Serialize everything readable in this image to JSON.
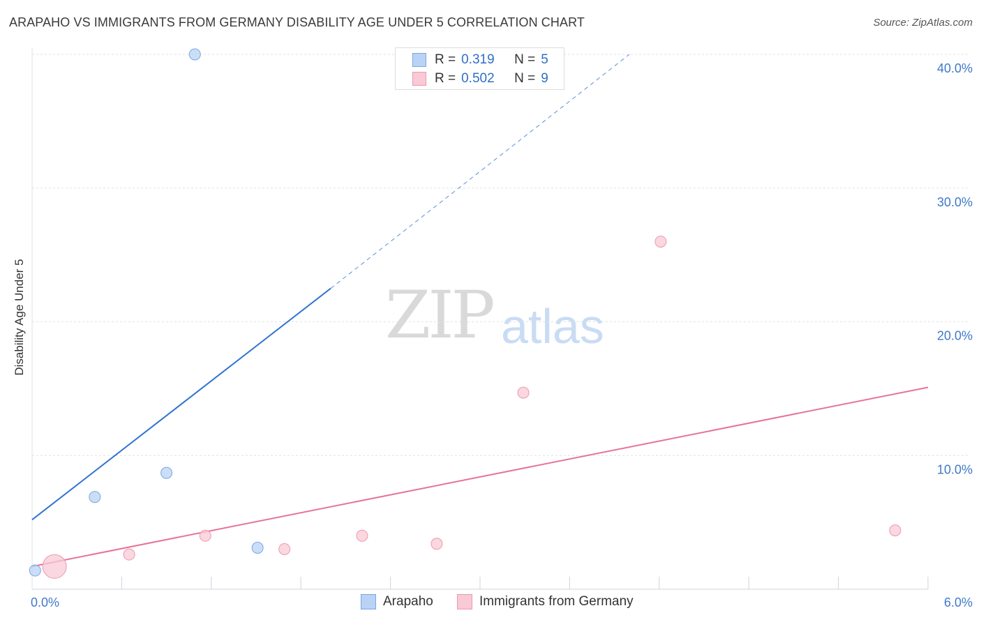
{
  "header": {
    "title": "ARAPAHO VS IMMIGRANTS FROM GERMANY DISABILITY AGE UNDER 5 CORRELATION CHART",
    "source": "Source: ZipAtlas.com"
  },
  "watermark": {
    "zip": "ZIP",
    "atlas": "atlas"
  },
  "legend": {
    "arapaho": {
      "r_label": "R =",
      "r_value": "0.319",
      "n_label": "N =",
      "n_value": "5"
    },
    "germany": {
      "r_label": "R =",
      "r_value": "0.502",
      "n_label": "N =",
      "n_value": "9"
    }
  },
  "bottom_legend": {
    "arapaho": "Arapaho",
    "germany": "Immigrants from Germany"
  },
  "colors": {
    "arapaho_fill": "#b9d3f6",
    "arapaho_stroke": "#7aa6e0",
    "arapaho_line": "#2f74cf",
    "germany_fill": "#f9c9d6",
    "germany_stroke": "#ec98b0",
    "germany_line": "#e5739a",
    "grid": "#dde1e6",
    "tick_text": "#3f79c9"
  },
  "chart_data": {
    "type": "scatter",
    "title": "ARAPAHO VS IMMIGRANTS FROM GERMANY DISABILITY AGE UNDER 5 CORRELATION CHART",
    "xlabel": "",
    "ylabel": "Disability Age Under 5",
    "xlim": [
      0,
      6
    ],
    "ylim": [
      0,
      40
    ],
    "x_tick_labels": [
      {
        "value": 0,
        "label": "0.0%"
      },
      {
        "value": 6,
        "label": "6.0%"
      }
    ],
    "y_tick_labels": [
      {
        "value": 10,
        "label": "10.0%"
      },
      {
        "value": 20,
        "label": "20.0%"
      },
      {
        "value": 30,
        "label": "30.0%"
      },
      {
        "value": 40,
        "label": "40.0%"
      }
    ],
    "series": [
      {
        "name": "Arapaho",
        "r": 0.319,
        "n": 5,
        "points": [
          {
            "x": 0.02,
            "y": 1.4,
            "size": 1
          },
          {
            "x": 0.42,
            "y": 6.9,
            "size": 1
          },
          {
            "x": 0.9,
            "y": 8.7,
            "size": 1
          },
          {
            "x": 1.09,
            "y": 40.0,
            "size": 1
          },
          {
            "x": 1.51,
            "y": 3.1,
            "size": 1
          }
        ],
        "trend": {
          "x0": 0,
          "y0": 5.2,
          "x1": 2.0,
          "y1": 22.5,
          "dashed_to_x": 4.0,
          "dashed_to_y": 40.0
        }
      },
      {
        "name": "Immigrants from Germany",
        "r": 0.502,
        "n": 9,
        "points": [
          {
            "x": 0.15,
            "y": 1.7,
            "size": 3
          },
          {
            "x": 0.65,
            "y": 2.6,
            "size": 1
          },
          {
            "x": 1.16,
            "y": 4.0,
            "size": 1
          },
          {
            "x": 1.69,
            "y": 3.0,
            "size": 1
          },
          {
            "x": 2.21,
            "y": 4.0,
            "size": 1
          },
          {
            "x": 2.71,
            "y": 3.4,
            "size": 1
          },
          {
            "x": 3.29,
            "y": 14.7,
            "size": 1
          },
          {
            "x": 4.21,
            "y": 26.0,
            "size": 1
          },
          {
            "x": 5.78,
            "y": 4.4,
            "size": 1
          }
        ],
        "trend": {
          "x0": 0,
          "y0": 1.7,
          "x1": 6.0,
          "y1": 15.1
        }
      }
    ]
  }
}
